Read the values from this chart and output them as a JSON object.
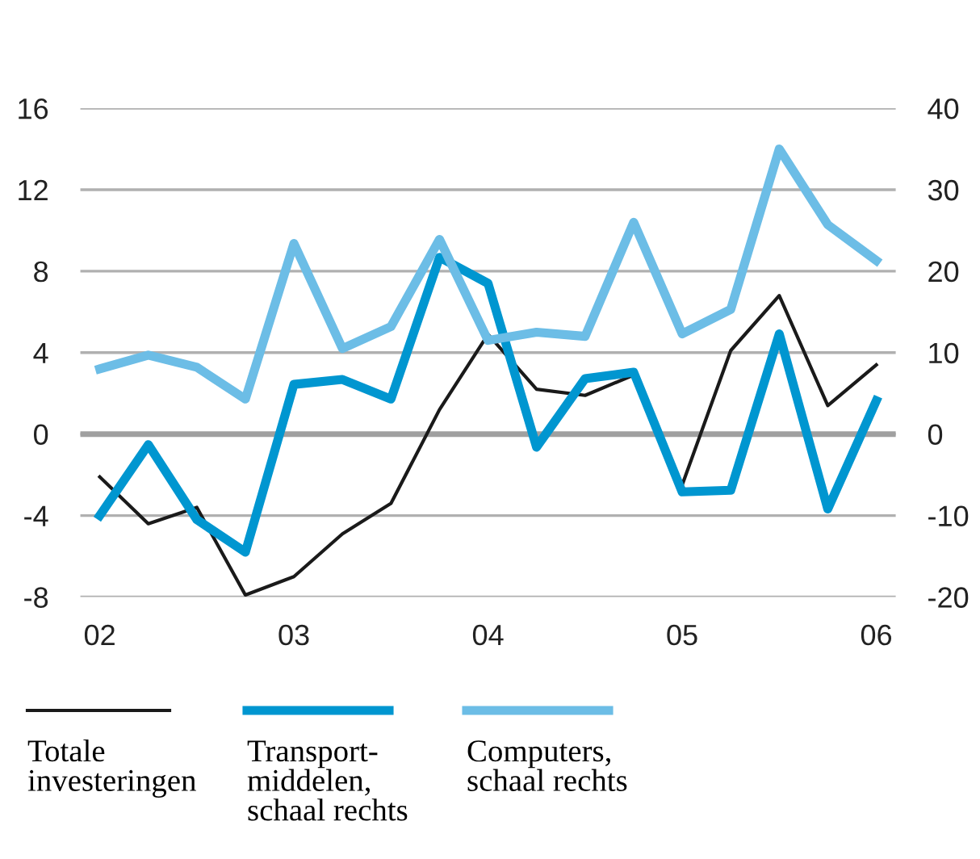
{
  "chart_data": {
    "type": "line",
    "x": [
      2002,
      2002.25,
      2002.5,
      2002.75,
      2003,
      2003.25,
      2003.5,
      2003.75,
      2004,
      2004.25,
      2004.5,
      2004.75,
      2005,
      2005.25,
      2005.5,
      2005.75,
      2006
    ],
    "series": [
      {
        "name": "Totale\ninvesteringen",
        "color": "#1a1a1a",
        "values": [
          -2.1,
          -4.4,
          -3.6,
          -7.9,
          -7.0,
          -4.9,
          -3.4,
          1.2,
          4.9,
          2.2,
          1.9,
          2.9,
          -2.5,
          4.1,
          6.8,
          1.4,
          3.4
        ]
      },
      {
        "name": "Transport-\nmiddelen,\nschaal rechts",
        "color": "#0096d0",
        "axis": "y2",
        "values": [
          -10,
          -1.3,
          -10.5,
          -14.5,
          6.1,
          6.7,
          4.3,
          21.7,
          18.5,
          -1.6,
          6.8,
          7.6,
          -7.1,
          -6.9,
          12.3,
          -9.2,
          4.1
        ]
      },
      {
        "name": "Computers,\nschaal rechts",
        "color": "#6cbde6",
        "axis": "y2",
        "values": [
          8.0,
          9.7,
          8.2,
          4.3,
          23.4,
          10.5,
          13.2,
          23.9,
          11.5,
          12.5,
          12.0,
          26.0,
          12.3,
          15.3,
          35.0,
          25.7,
          21.3
        ]
      }
    ],
    "xlim": [
      2001.9,
      2006.1
    ],
    "xticks": [
      {
        "value": 2002,
        "label": "02"
      },
      {
        "value": 2003,
        "label": "03"
      },
      {
        "value": 2004,
        "label": "04"
      },
      {
        "value": 2005,
        "label": "05"
      },
      {
        "value": 2006,
        "label": "06"
      }
    ],
    "ylim": [
      -8,
      16
    ],
    "yticks": [
      -8,
      -4,
      0,
      4,
      8,
      12,
      16
    ],
    "y2lim": [
      -20,
      40
    ],
    "y2ticks": [
      -20,
      -10,
      0,
      10,
      20,
      30,
      40
    ],
    "ref_lines": [
      {
        "axis": "y",
        "value": 0,
        "color": "#a0a0a0"
      }
    ],
    "grid": "y",
    "legend": "bottom",
    "line_style": "solid",
    "marker": "none"
  }
}
